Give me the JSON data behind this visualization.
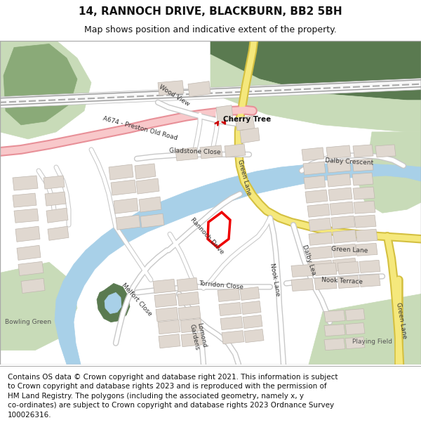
{
  "title_line1": "14, RANNOCH DRIVE, BLACKBURN, BB2 5BH",
  "title_line2": "Map shows position and indicative extent of the property.",
  "footer": "Contains OS data © Crown copyright and database right 2021. This information is subject\nto Crown copyright and database rights 2023 and is reproduced with the permission of\nHM Land Registry. The polygons (including the associated geometry, namely x, y\nco-ordinates) are subject to Crown copyright and database rights 2023 Ordnance Survey\n100026316.",
  "bg_color": "#ffffff",
  "map_bg": "#f2ede8",
  "green_light": "#c8dbb8",
  "green_med": "#8aaa78",
  "green_dark": "#5a7a50",
  "road_white": "#ffffff",
  "road_gray_outline": "#c8c8c8",
  "a_road_fill": "#f8c8ca",
  "a_road_outline": "#e89098",
  "yellow_fill": "#f5e87c",
  "yellow_outline": "#d4c040",
  "river_fill": "#a8d0e8",
  "river_outline": "#88b8d8",
  "building_fill": "#e0d8d0",
  "building_outline": "#c0b8b0",
  "plot_fill": "#ffffff",
  "plot_outline": "#ee0000",
  "station_red": "#cc0000",
  "title_fontsize": 11,
  "subtitle_fontsize": 9,
  "footer_fontsize": 7.5,
  "label_fontsize": 6.5
}
